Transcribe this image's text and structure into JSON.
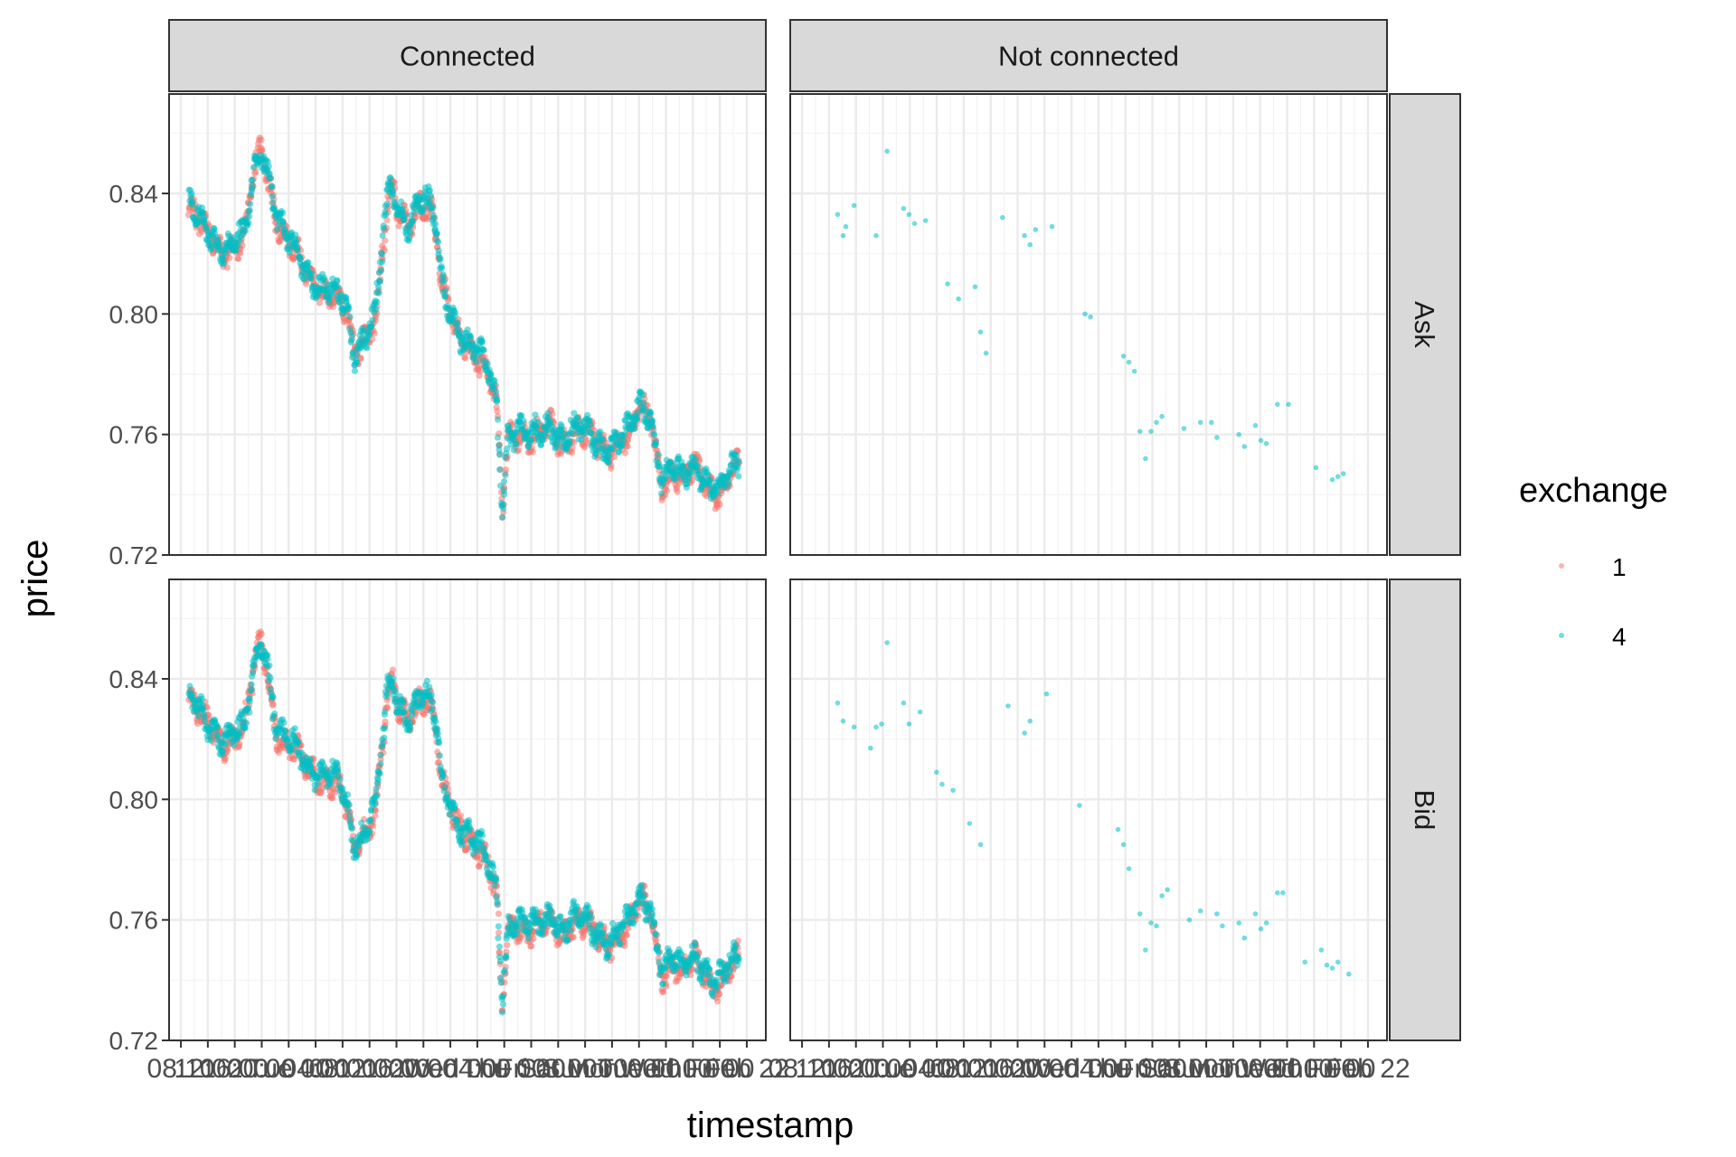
{
  "chart_data": {
    "type": "scatter",
    "title": "",
    "xlabel": "timestamp",
    "ylabel": "price",
    "facets": {
      "columns": [
        "Connected",
        "Not connected"
      ],
      "rows": [
        "Ask",
        "Bid"
      ]
    },
    "ylim": [
      0.72,
      0.873
    ],
    "yticks": [
      0.72,
      0.76,
      0.8,
      0.84
    ],
    "ytick_labels": [
      "0.72",
      "0.76",
      "0.80",
      "0.84"
    ],
    "xticks_left_labels": [
      "08:10",
      "12:00",
      "16:00",
      "20:00",
      "Tue 00",
      "04:00",
      "08:00",
      "12:00",
      "16:00",
      "20:00",
      "Wed 00",
      "04:00",
      "Thu 00",
      "Fri 00",
      "Sat 00",
      "Sun 00",
      "Mon 00",
      "Tue 00",
      "Wed 00",
      "Thu 00",
      "Fri 00",
      "Feb 22"
    ],
    "xticks_right_labels": [
      "08:10",
      "12:00",
      "16:00",
      "20:00",
      "Tue 00",
      "04:00",
      "08:00",
      "12:00",
      "16:00",
      "20:00",
      "Wed 00",
      "04:00",
      "Thu 00",
      "Fri 00",
      "Sat 00",
      "Sun 00",
      "Mon 00",
      "Tue 00",
      "Wed 00",
      "Thu 00",
      "Fri 00",
      "Feb 22"
    ],
    "legend": {
      "title": "exchange",
      "position": "right",
      "entries": [
        {
          "name": "1",
          "color": "#F8766D"
        },
        {
          "name": "4",
          "color": "#00BFC4"
        }
      ]
    },
    "grid": true,
    "connected_path": {
      "x": [
        0.0,
        0.02,
        0.04,
        0.06,
        0.08,
        0.1,
        0.12,
        0.13,
        0.14,
        0.16,
        0.18,
        0.2,
        0.22,
        0.25,
        0.27,
        0.29,
        0.3,
        0.32,
        0.34,
        0.35,
        0.36,
        0.37,
        0.38,
        0.4,
        0.42,
        0.44,
        0.45,
        0.46,
        0.48,
        0.5,
        0.52,
        0.54,
        0.56,
        0.57,
        0.58,
        0.6,
        0.62,
        0.64,
        0.66,
        0.68,
        0.7,
        0.72,
        0.74,
        0.76,
        0.78,
        0.8,
        0.82,
        0.84,
        0.86,
        0.88,
        0.9,
        0.92,
        0.94,
        0.96,
        0.98,
        1.0
      ],
      "ask": [
        0.835,
        0.83,
        0.826,
        0.822,
        0.823,
        0.824,
        0.848,
        0.855,
        0.85,
        0.832,
        0.824,
        0.818,
        0.812,
        0.808,
        0.806,
        0.798,
        0.786,
        0.793,
        0.801,
        0.818,
        0.836,
        0.841,
        0.833,
        0.83,
        0.839,
        0.835,
        0.826,
        0.808,
        0.798,
        0.792,
        0.788,
        0.782,
        0.77,
        0.735,
        0.76,
        0.762,
        0.758,
        0.76,
        0.763,
        0.758,
        0.762,
        0.76,
        0.757,
        0.755,
        0.758,
        0.76,
        0.768,
        0.766,
        0.745,
        0.748,
        0.744,
        0.75,
        0.745,
        0.741,
        0.745,
        0.749
      ],
      "bid": [
        0.833,
        0.828,
        0.824,
        0.82,
        0.821,
        0.822,
        0.845,
        0.852,
        0.848,
        0.822,
        0.818,
        0.815,
        0.81,
        0.808,
        0.806,
        0.795,
        0.783,
        0.79,
        0.799,
        0.815,
        0.833,
        0.838,
        0.83,
        0.827,
        0.836,
        0.832,
        0.822,
        0.805,
        0.795,
        0.79,
        0.786,
        0.78,
        0.768,
        0.732,
        0.758,
        0.76,
        0.756,
        0.758,
        0.761,
        0.756,
        0.76,
        0.758,
        0.755,
        0.753,
        0.756,
        0.758,
        0.766,
        0.764,
        0.743,
        0.746,
        0.742,
        0.748,
        0.743,
        0.739,
        0.743,
        0.747
      ]
    },
    "not_connected_ask": [
      [
        0.05,
        0.833
      ],
      [
        0.06,
        0.826
      ],
      [
        0.065,
        0.829
      ],
      [
        0.08,
        0.836
      ],
      [
        0.12,
        0.826
      ],
      [
        0.14,
        0.854
      ],
      [
        0.17,
        0.835
      ],
      [
        0.18,
        0.833
      ],
      [
        0.19,
        0.83
      ],
      [
        0.21,
        0.831
      ],
      [
        0.25,
        0.81
      ],
      [
        0.27,
        0.805
      ],
      [
        0.3,
        0.809
      ],
      [
        0.31,
        0.794
      ],
      [
        0.32,
        0.787
      ],
      [
        0.35,
        0.832
      ],
      [
        0.39,
        0.826
      ],
      [
        0.4,
        0.823
      ],
      [
        0.41,
        0.828
      ],
      [
        0.44,
        0.829
      ],
      [
        0.5,
        0.8
      ],
      [
        0.51,
        0.799
      ],
      [
        0.57,
        0.786
      ],
      [
        0.58,
        0.784
      ],
      [
        0.59,
        0.781
      ],
      [
        0.6,
        0.761
      ],
      [
        0.61,
        0.752
      ],
      [
        0.62,
        0.761
      ],
      [
        0.63,
        0.764
      ],
      [
        0.64,
        0.766
      ],
      [
        0.68,
        0.762
      ],
      [
        0.71,
        0.764
      ],
      [
        0.73,
        0.764
      ],
      [
        0.74,
        0.759
      ],
      [
        0.78,
        0.76
      ],
      [
        0.79,
        0.756
      ],
      [
        0.81,
        0.763
      ],
      [
        0.82,
        0.758
      ],
      [
        0.83,
        0.757
      ],
      [
        0.85,
        0.77
      ],
      [
        0.87,
        0.77
      ],
      [
        0.92,
        0.749
      ],
      [
        0.95,
        0.745
      ],
      [
        0.96,
        0.746
      ],
      [
        0.97,
        0.747
      ]
    ],
    "not_connected_bid": [
      [
        0.05,
        0.832
      ],
      [
        0.06,
        0.826
      ],
      [
        0.08,
        0.824
      ],
      [
        0.11,
        0.817
      ],
      [
        0.12,
        0.824
      ],
      [
        0.13,
        0.825
      ],
      [
        0.14,
        0.852
      ],
      [
        0.17,
        0.832
      ],
      [
        0.18,
        0.825
      ],
      [
        0.2,
        0.829
      ],
      [
        0.23,
        0.809
      ],
      [
        0.24,
        0.805
      ],
      [
        0.26,
        0.803
      ],
      [
        0.29,
        0.792
      ],
      [
        0.31,
        0.785
      ],
      [
        0.36,
        0.831
      ],
      [
        0.39,
        0.822
      ],
      [
        0.4,
        0.826
      ],
      [
        0.43,
        0.835
      ],
      [
        0.49,
        0.798
      ],
      [
        0.56,
        0.79
      ],
      [
        0.57,
        0.785
      ],
      [
        0.58,
        0.777
      ],
      [
        0.6,
        0.762
      ],
      [
        0.61,
        0.75
      ],
      [
        0.62,
        0.759
      ],
      [
        0.63,
        0.758
      ],
      [
        0.64,
        0.768
      ],
      [
        0.65,
        0.77
      ],
      [
        0.69,
        0.76
      ],
      [
        0.71,
        0.763
      ],
      [
        0.74,
        0.762
      ],
      [
        0.75,
        0.758
      ],
      [
        0.78,
        0.759
      ],
      [
        0.79,
        0.754
      ],
      [
        0.81,
        0.762
      ],
      [
        0.82,
        0.757
      ],
      [
        0.83,
        0.759
      ],
      [
        0.85,
        0.769
      ],
      [
        0.86,
        0.769
      ],
      [
        0.9,
        0.746
      ],
      [
        0.93,
        0.75
      ],
      [
        0.94,
        0.745
      ],
      [
        0.95,
        0.744
      ],
      [
        0.96,
        0.746
      ],
      [
        0.98,
        0.742
      ]
    ]
  }
}
